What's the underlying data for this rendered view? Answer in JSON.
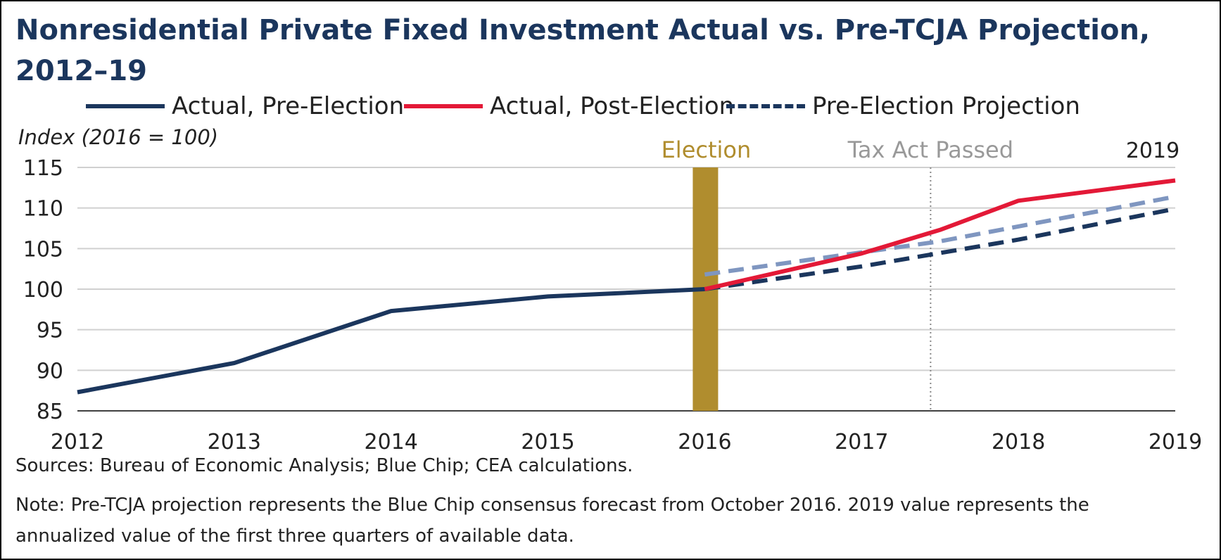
{
  "title": "Nonresidential Private Fixed Investment Actual vs. Pre-TCJA Projection, 2012–19",
  "legend": [
    {
      "label": "Actual, Pre-Election",
      "style": "solid",
      "color": "#1b365d"
    },
    {
      "label": "Actual, Post-Election",
      "style": "solid",
      "color": "#e31937"
    },
    {
      "label": "Pre-Election Projection",
      "style": "dashed",
      "color": "#1b365d"
    }
  ],
  "unit_label": "Index (2016 = 100)",
  "annotations": {
    "election": {
      "label": "Election",
      "x": 2016,
      "color": "#b08d2e"
    },
    "tax_act": {
      "label": "Tax Act Passed",
      "x": 2017.44,
      "color": "#999999"
    },
    "year_2019": {
      "label": "2019"
    }
  },
  "footer": {
    "sources": "Sources: Bureau of Economic Analysis; Blue Chip; CEA calculations.",
    "note_line1": "Note: Pre-TCJA projection represents the Blue Chip consensus forecast from October 2016.  2019 value represents the",
    "note_line2": "annualized value of the first three quarters of available data."
  },
  "chart_data": {
    "type": "line",
    "title": "Nonresidential Private Fixed Investment Actual vs. Pre-TCJA Projection, 2012–19",
    "xlabel": "",
    "ylabel": "Index (2016 = 100)",
    "xlim": [
      2012,
      2019
    ],
    "ylim": [
      85,
      115
    ],
    "yticks": [
      85,
      90,
      95,
      100,
      105,
      110,
      115
    ],
    "xticks": [
      2012,
      2013,
      2014,
      2015,
      2016,
      2017,
      2018,
      2019
    ],
    "grid": true,
    "legend_position": "top",
    "series": [
      {
        "name": "Actual, Pre-Election",
        "style": "solid",
        "color": "#1b365d",
        "x": [
          2012,
          2013,
          2014,
          2015,
          2016
        ],
        "y": [
          87.3,
          90.9,
          97.3,
          99.1,
          100.0
        ]
      },
      {
        "name": "Actual, Post-Election",
        "style": "solid",
        "color": "#e31937",
        "x": [
          2016,
          2017,
          2017.5,
          2018,
          2019
        ],
        "y": [
          100.0,
          104.4,
          107.3,
          110.9,
          113.4
        ]
      },
      {
        "name": "Pre-Election Projection",
        "style": "dashed",
        "color": "#1b365d",
        "x": [
          2016,
          2017,
          2018,
          2019
        ],
        "y": [
          100.0,
          102.8,
          106.1,
          109.9
        ]
      },
      {
        "style": "dashed",
        "color": "#7f96c0",
        "x": [
          2016,
          2017.5,
          2019
        ],
        "y": [
          101.8,
          105.9,
          111.4
        ]
      }
    ]
  }
}
